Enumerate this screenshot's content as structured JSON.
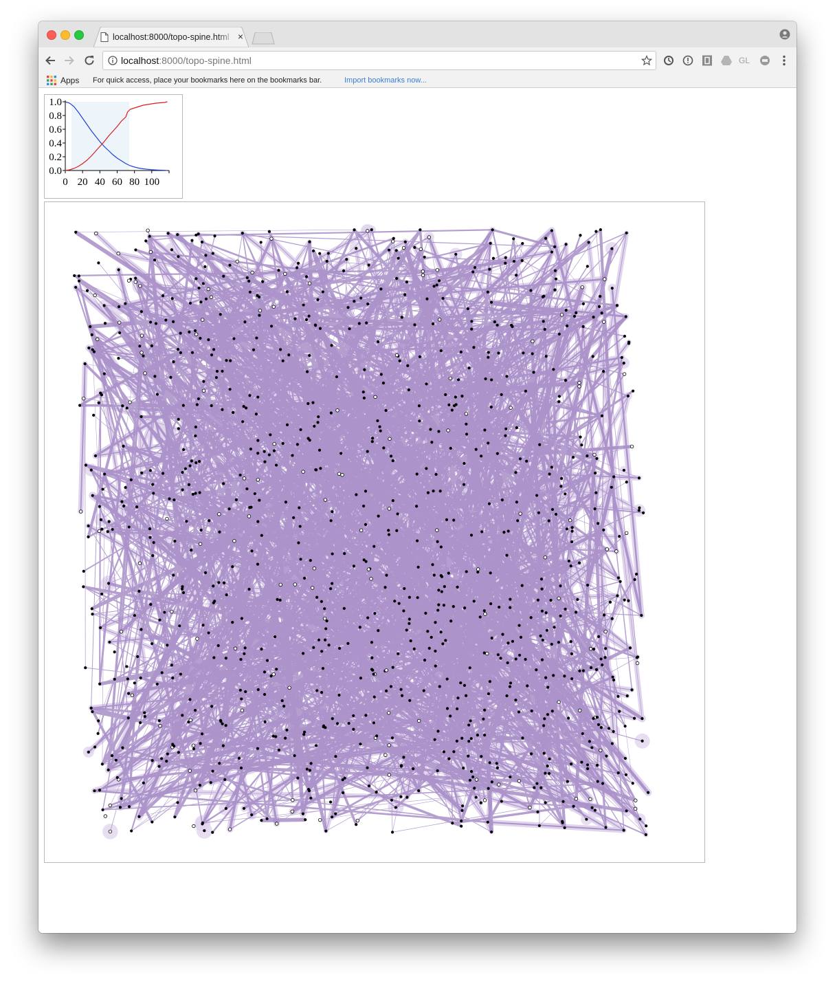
{
  "browser": {
    "tab": {
      "title": "localhost:8000/topo-spine.html",
      "close_glyph": "×"
    },
    "address_bar": {
      "host": "localhost",
      "rest": ":8000/topo-spine.html"
    },
    "bookmarks_bar": {
      "apps_label": "Apps",
      "hint": "For quick access, place your bookmarks here on the bookmarks bar.",
      "import_link": "Import bookmarks now..."
    },
    "extensions": [
      "sync-icon",
      "info-circle-icon",
      "shield-extension-icon",
      "drive-icon",
      "gl-extension-icon",
      "cookie-extension-icon",
      "more-vert-icon"
    ],
    "extension_labels": {
      "gl": "GL"
    }
  },
  "chart_data": {
    "type": "line",
    "title": "",
    "xlabel": "",
    "ylabel": "",
    "xlim": [
      0,
      120
    ],
    "ylim": [
      0,
      1
    ],
    "x_ticks": [
      "0",
      "20",
      "40",
      "60",
      "80",
      "100"
    ],
    "y_ticks": [
      "0.0",
      "0.2",
      "0.4",
      "0.6",
      "0.8",
      "1.0"
    ],
    "highlight_range": [
      7,
      74
    ],
    "series": [
      {
        "color": "#1f3fd8",
        "x": [
          0,
          5,
          10,
          15,
          20,
          25,
          30,
          35,
          40,
          45,
          50,
          55,
          60,
          65,
          70,
          75,
          80,
          85,
          90,
          95,
          100,
          105,
          110,
          115,
          118
        ],
        "y": [
          1.0,
          0.98,
          0.93,
          0.85,
          0.76,
          0.67,
          0.58,
          0.5,
          0.42,
          0.35,
          0.29,
          0.23,
          0.18,
          0.14,
          0.1,
          0.07,
          0.05,
          0.035,
          0.025,
          0.018,
          0.012,
          0.008,
          0.005,
          0.003,
          0.0
        ]
      },
      {
        "color": "#d91e1e",
        "x": [
          0,
          5,
          10,
          15,
          20,
          25,
          30,
          35,
          40,
          45,
          50,
          55,
          60,
          65,
          70,
          72,
          75,
          80,
          85,
          90,
          95,
          100,
          105,
          110,
          115,
          118
        ],
        "y": [
          0.0,
          0.01,
          0.03,
          0.06,
          0.1,
          0.15,
          0.21,
          0.28,
          0.35,
          0.42,
          0.5,
          0.57,
          0.64,
          0.72,
          0.78,
          0.85,
          0.89,
          0.91,
          0.93,
          0.95,
          0.96,
          0.97,
          0.98,
          0.985,
          0.99,
          1.0
        ]
      }
    ]
  },
  "topology": {
    "edge_color": "#9b7fc0",
    "halo_color": "#c8b4de",
    "node_fill": "#000000",
    "node_hollow_fill": "#ffffff",
    "node_count": 1100,
    "edge_count": 1500,
    "seed": 7
  }
}
